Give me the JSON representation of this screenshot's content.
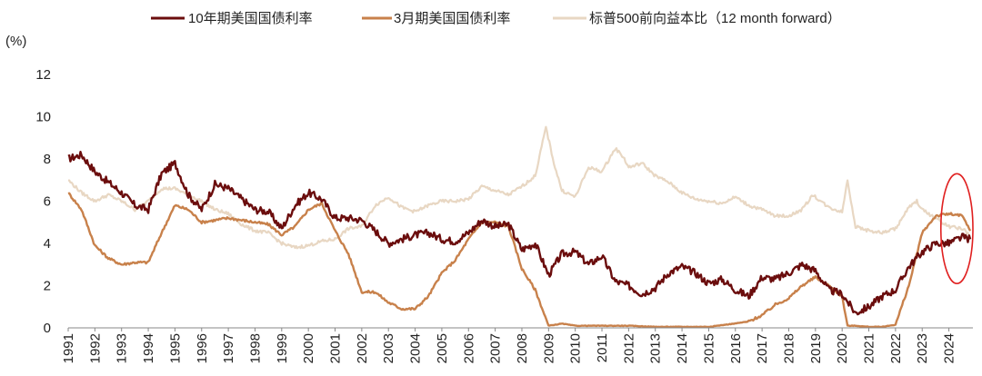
{
  "chart_data": {
    "type": "line",
    "title": "",
    "ylabel": "(%)",
    "xlabel": "",
    "ylim": [
      0,
      12
    ],
    "yticks": [
      0,
      2,
      4,
      6,
      8,
      10,
      12
    ],
    "xlim": [
      1991,
      2024.9
    ],
    "x_tick_labels": [
      "1991",
      "1992",
      "1993",
      "1994",
      "1995",
      "1996",
      "1997",
      "1998",
      "1999",
      "2000",
      "2001",
      "2002",
      "2003",
      "2004",
      "2005",
      "2006",
      "2007",
      "2008",
      "2009",
      "2010",
      "2011",
      "2012",
      "2013",
      "2014",
      "2015",
      "2016",
      "2017",
      "2018",
      "2019",
      "2020",
      "2021",
      "2022",
      "2023",
      "2024"
    ],
    "legend_position": "top",
    "highlight_annotation": {
      "shape": "ellipse",
      "color": "#e02020",
      "x_range": [
        2023.7,
        2024.9
      ],
      "y_range": [
        2.1,
        7.3
      ]
    },
    "series": [
      {
        "name": "10年期美国国债利率",
        "color": "#6b0d0d",
        "x": [
          1991.0,
          1991.5,
          1992.0,
          1992.5,
          1993.0,
          1993.5,
          1994.0,
          1994.5,
          1995.0,
          1995.5,
          1996.0,
          1996.5,
          1997.0,
          1997.5,
          1998.0,
          1998.5,
          1999.0,
          1999.5,
          2000.0,
          2000.5,
          2001.0,
          2001.5,
          2002.0,
          2002.5,
          2003.0,
          2003.5,
          2004.0,
          2004.5,
          2005.0,
          2005.5,
          2006.0,
          2006.5,
          2007.0,
          2007.5,
          2008.0,
          2008.5,
          2009.0,
          2009.5,
          2010.0,
          2010.5,
          2011.0,
          2011.5,
          2012.0,
          2012.5,
          2013.0,
          2013.5,
          2014.0,
          2014.5,
          2015.0,
          2015.5,
          2016.0,
          2016.5,
          2017.0,
          2017.5,
          2018.0,
          2018.5,
          2019.0,
          2019.5,
          2020.0,
          2020.5,
          2021.0,
          2021.5,
          2022.0,
          2022.5,
          2023.0,
          2023.5,
          2024.0,
          2024.5,
          2024.8
        ],
        "values": [
          8.0,
          8.2,
          7.4,
          6.9,
          6.4,
          5.8,
          5.6,
          7.3,
          7.8,
          6.3,
          5.6,
          6.8,
          6.6,
          6.1,
          5.6,
          5.5,
          4.7,
          5.8,
          6.4,
          6.1,
          5.2,
          5.2,
          5.1,
          4.6,
          4.0,
          4.2,
          4.4,
          4.5,
          4.2,
          4.1,
          4.5,
          5.1,
          4.8,
          4.9,
          3.7,
          4.0,
          2.5,
          3.5,
          3.6,
          3.0,
          3.4,
          2.2,
          2.0,
          1.6,
          1.9,
          2.6,
          2.9,
          2.6,
          2.1,
          2.3,
          1.8,
          1.5,
          2.4,
          2.3,
          2.6,
          3.0,
          2.7,
          1.8,
          1.6,
          0.7,
          1.0,
          1.5,
          1.8,
          2.9,
          3.6,
          4.0,
          4.0,
          4.3,
          4.2
        ]
      },
      {
        "name": "3月期美国国债利率",
        "color": "#c8814b",
        "x": [
          1991.0,
          1991.5,
          1992.0,
          1992.5,
          1993.0,
          1993.5,
          1994.0,
          1994.5,
          1995.0,
          1995.5,
          1996.0,
          1996.5,
          1997.0,
          1997.5,
          1998.0,
          1998.5,
          1999.0,
          1999.5,
          2000.0,
          2000.5,
          2001.0,
          2001.5,
          2002.0,
          2002.5,
          2003.0,
          2003.5,
          2004.0,
          2004.5,
          2005.0,
          2005.5,
          2006.0,
          2006.5,
          2007.0,
          2007.5,
          2008.0,
          2008.5,
          2009.0,
          2009.5,
          2010.0,
          2011.0,
          2012.0,
          2013.0,
          2014.0,
          2015.0,
          2015.95,
          2016.5,
          2017.0,
          2017.5,
          2018.0,
          2018.5,
          2019.0,
          2019.5,
          2020.0,
          2020.2,
          2020.5,
          2021.0,
          2021.5,
          2022.0,
          2022.5,
          2023.0,
          2023.5,
          2024.0,
          2024.5,
          2024.8
        ],
        "values": [
          6.4,
          5.6,
          3.9,
          3.3,
          3.0,
          3.1,
          3.1,
          4.5,
          5.8,
          5.6,
          5.0,
          5.1,
          5.2,
          5.1,
          5.0,
          4.9,
          4.4,
          4.8,
          5.6,
          5.9,
          4.6,
          3.5,
          1.7,
          1.7,
          1.2,
          0.9,
          0.9,
          1.5,
          2.6,
          3.2,
          4.2,
          5.0,
          5.0,
          4.8,
          2.8,
          1.8,
          0.1,
          0.2,
          0.1,
          0.1,
          0.1,
          0.05,
          0.05,
          0.05,
          0.2,
          0.3,
          0.6,
          1.1,
          1.4,
          2.0,
          2.4,
          2.0,
          1.5,
          0.1,
          0.1,
          0.05,
          0.05,
          0.15,
          2.0,
          4.5,
          5.3,
          5.4,
          5.3,
          4.6
        ]
      },
      {
        "name": "标普500前向益本比（12 month forward）",
        "color": "#e8d7c3",
        "x": [
          1991.0,
          1991.5,
          1992.0,
          1992.5,
          1993.0,
          1993.5,
          1994.0,
          1994.5,
          1995.0,
          1995.5,
          1996.0,
          1996.5,
          1997.0,
          1997.5,
          1998.0,
          1998.5,
          1999.0,
          1999.5,
          2000.0,
          2000.5,
          2001.0,
          2001.5,
          2002.0,
          2002.5,
          2003.0,
          2003.5,
          2004.0,
          2004.5,
          2005.0,
          2005.5,
          2006.0,
          2006.5,
          2007.0,
          2007.5,
          2008.0,
          2008.5,
          2008.9,
          2009.2,
          2009.5,
          2010.0,
          2010.5,
          2011.0,
          2011.5,
          2011.8,
          2012.0,
          2012.5,
          2013.0,
          2013.5,
          2014.0,
          2014.5,
          2015.0,
          2015.5,
          2016.0,
          2016.5,
          2017.0,
          2017.5,
          2018.0,
          2018.5,
          2018.9,
          2019.5,
          2020.0,
          2020.2,
          2020.5,
          2021.0,
          2021.5,
          2022.0,
          2022.5,
          2022.8,
          2023.0,
          2023.5,
          2024.0,
          2024.5,
          2024.8
        ],
        "values": [
          7.0,
          6.4,
          6.0,
          6.3,
          6.0,
          5.6,
          6.0,
          6.6,
          6.6,
          6.3,
          6.0,
          5.6,
          5.4,
          4.9,
          4.6,
          4.5,
          4.0,
          3.8,
          3.9,
          4.1,
          4.2,
          4.7,
          4.8,
          5.8,
          6.2,
          5.7,
          5.5,
          5.8,
          6.0,
          6.0,
          6.1,
          6.7,
          6.5,
          6.3,
          6.7,
          7.2,
          9.5,
          7.8,
          6.5,
          6.2,
          7.6,
          7.4,
          8.5,
          8.1,
          7.6,
          7.8,
          7.2,
          6.9,
          6.4,
          6.1,
          6.0,
          5.9,
          6.2,
          5.8,
          5.6,
          5.3,
          5.3,
          5.6,
          6.3,
          5.7,
          5.5,
          7.0,
          4.8,
          4.6,
          4.5,
          4.7,
          5.7,
          6.0,
          5.6,
          5.2,
          4.8,
          4.7,
          4.4
        ]
      }
    ]
  }
}
